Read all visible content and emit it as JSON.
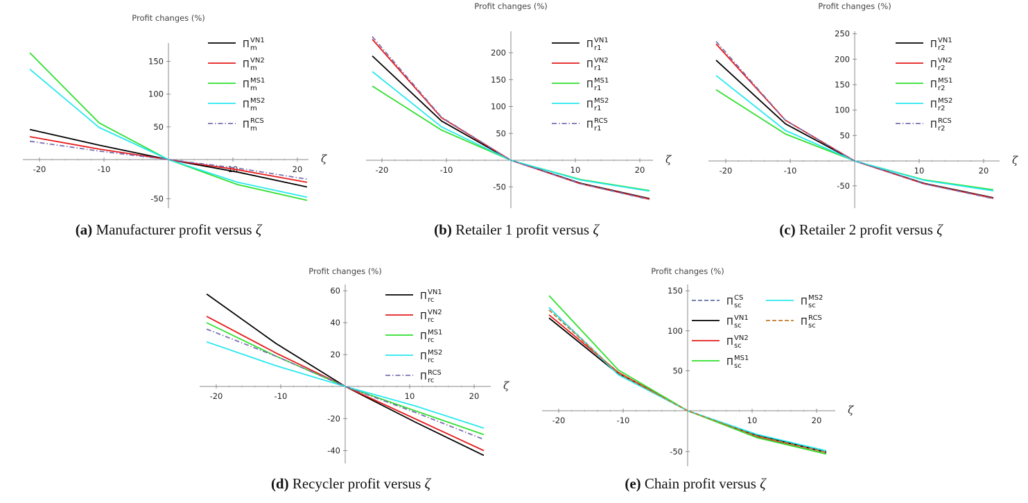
{
  "colors": {
    "VN1": "#000000",
    "VN2": "#e61a1a",
    "MS1": "#2ee02e",
    "MS2": "#27e8ef",
    "RCS": "#7a6fb0",
    "CS": "#5b6f9c",
    "RCS_chain": "#c07a2a"
  },
  "chart_data": [
    {
      "type": "line",
      "panel": "a",
      "caption_letter": "(a)",
      "caption_text": "Manufacturer profit versus ",
      "caption_symbol": "ζ",
      "ylabel": "Profit changes (%)",
      "xlabel": "ζ",
      "xlim": [
        -21.5,
        21.5
      ],
      "ylim": [
        -62,
        178
      ],
      "xticks": [
        -20,
        -10,
        10,
        20
      ],
      "yticks": [
        -50,
        50,
        100,
        150
      ],
      "x": [
        -21.5,
        -10.75,
        0,
        10.75,
        21.5
      ],
      "legend_position": "top-right",
      "series": [
        {
          "name": "VN1",
          "base": "Π",
          "sub": "m",
          "sup": "VN1",
          "color_key": "VN1",
          "dash": "solid",
          "values": [
            46,
            22,
            0,
            -16,
            -35
          ]
        },
        {
          "name": "VN2",
          "base": "Π",
          "sub": "m",
          "sup": "VN2",
          "color_key": "VN2",
          "dash": "solid",
          "values": [
            35,
            16,
            0,
            -13,
            -29
          ]
        },
        {
          "name": "MS1",
          "base": "Π",
          "sub": "m",
          "sup": "MS1",
          "color_key": "MS1",
          "dash": "solid",
          "values": [
            163,
            56,
            0,
            -32,
            -52
          ]
        },
        {
          "name": "MS2",
          "base": "Π",
          "sub": "m",
          "sup": "MS2",
          "color_key": "MS2",
          "dash": "solid",
          "values": [
            138,
            49,
            0,
            -29,
            -48
          ]
        },
        {
          "name": "RCS",
          "base": "Π",
          "sub": "m",
          "sup": "RCS",
          "color_key": "RCS",
          "dash": "dashdot",
          "values": [
            28,
            13,
            0,
            -11,
            -25
          ]
        }
      ]
    },
    {
      "type": "line",
      "panel": "b",
      "caption_letter": "(b)",
      "caption_text": "Retailer 1 profit versus ",
      "caption_symbol": "ζ",
      "ylabel": "Profit changes (%)",
      "xlabel": "ζ",
      "xlim": [
        -21.5,
        21.5
      ],
      "ylim": [
        -90,
        240
      ],
      "xticks": [
        -20,
        -10,
        10,
        20
      ],
      "yticks": [
        -50,
        50,
        100,
        150,
        200
      ],
      "x": [
        -21.5,
        -10.75,
        0,
        10.75,
        21.5
      ],
      "legend_position": "top-right",
      "series": [
        {
          "name": "VN1",
          "base": "Π",
          "sub": "r1",
          "sup": "VN1",
          "color_key": "VN1",
          "dash": "solid",
          "values": [
            194,
            73,
            0,
            -43,
            -72
          ]
        },
        {
          "name": "VN2",
          "base": "Π",
          "sub": "r1",
          "sup": "VN2",
          "color_key": "VN2",
          "dash": "solid",
          "values": [
            225,
            79,
            0,
            -44,
            -73
          ]
        },
        {
          "name": "MS1",
          "base": "Π",
          "sub": "r1",
          "sup": "MS1",
          "color_key": "MS1",
          "dash": "solid",
          "values": [
            138,
            56,
            0,
            -36,
            -57
          ]
        },
        {
          "name": "MS2",
          "base": "Π",
          "sub": "r1",
          "sup": "MS2",
          "color_key": "MS2",
          "dash": "solid",
          "values": [
            165,
            62,
            0,
            -37,
            -58
          ]
        },
        {
          "name": "RCS",
          "base": "Π",
          "sub": "r1",
          "sup": "RCS",
          "color_key": "RCS",
          "dash": "dashdot",
          "values": [
            230,
            80,
            0,
            -44,
            -74
          ]
        }
      ]
    },
    {
      "type": "line",
      "panel": "c",
      "caption_letter": "(c)",
      "caption_text": "Retailer 2 profit versus ",
      "caption_symbol": "ζ",
      "ylabel": "Profit changes (%)",
      "xlabel": "ζ",
      "xlim": [
        -21.5,
        21.5
      ],
      "ylim": [
        -95,
        255
      ],
      "xticks": [
        -20,
        -10,
        10,
        20
      ],
      "yticks": [
        -50,
        50,
        100,
        150,
        200,
        250
      ],
      "x": [
        -21.5,
        -10.75,
        0,
        10.75,
        21.5
      ],
      "legend_position": "top-right",
      "series": [
        {
          "name": "VN1",
          "base": "Π",
          "sub": "r2",
          "sup": "VN1",
          "color_key": "VN1",
          "dash": "solid",
          "values": [
            198,
            73,
            0,
            -45,
            -74
          ]
        },
        {
          "name": "VN2",
          "base": "Π",
          "sub": "r2",
          "sup": "VN2",
          "color_key": "VN2",
          "dash": "solid",
          "values": [
            230,
            80,
            0,
            -46,
            -75
          ]
        },
        {
          "name": "MS1",
          "base": "Π",
          "sub": "r2",
          "sup": "MS1",
          "color_key": "MS1",
          "dash": "solid",
          "values": [
            140,
            53,
            0,
            -38,
            -58
          ]
        },
        {
          "name": "MS2",
          "base": "Π",
          "sub": "r2",
          "sup": "MS2",
          "color_key": "MS2",
          "dash": "solid",
          "values": [
            168,
            60,
            0,
            -39,
            -60
          ]
        },
        {
          "name": "RCS",
          "base": "Π",
          "sub": "r2",
          "sup": "RCS",
          "color_key": "RCS",
          "dash": "dashdot",
          "values": [
            235,
            80,
            0,
            -46,
            -76
          ]
        }
      ]
    },
    {
      "type": "line",
      "panel": "d",
      "caption_letter": "(d)",
      "caption_text": "Recycler profit versus ",
      "caption_symbol": "ζ",
      "ylabel": "Profit changes (%)",
      "xlabel": "ζ",
      "xlim": [
        -21.5,
        21.5
      ],
      "ylim": [
        -48,
        64
      ],
      "xticks": [
        -20,
        -10,
        10,
        20
      ],
      "yticks": [
        -40,
        -20,
        20,
        40,
        60
      ],
      "x": [
        -21.5,
        -10.75,
        0,
        10.75,
        21.5
      ],
      "legend_position": "top-right",
      "series": [
        {
          "name": "VN1",
          "base": "Π",
          "sub": "rc",
          "sup": "VN1",
          "color_key": "VN1",
          "dash": "solid",
          "values": [
            58,
            27,
            0,
            -22,
            -43
          ]
        },
        {
          "name": "VN2",
          "base": "Π",
          "sub": "rc",
          "sup": "VN2",
          "color_key": "VN2",
          "dash": "solid",
          "values": [
            44,
            21,
            0,
            -20,
            -40
          ]
        },
        {
          "name": "MS1",
          "base": "Π",
          "sub": "rc",
          "sup": "MS1",
          "color_key": "MS1",
          "dash": "solid",
          "values": [
            40,
            19,
            0,
            -15,
            -30
          ]
        },
        {
          "name": "MS2",
          "base": "Π",
          "sub": "rc",
          "sup": "MS2",
          "color_key": "MS2",
          "dash": "solid",
          "values": [
            28,
            13,
            0,
            -12,
            -26
          ]
        },
        {
          "name": "RCS",
          "base": "Π",
          "sub": "rc",
          "sup": "RCS",
          "color_key": "RCS",
          "dash": "dashdot",
          "values": [
            36,
            19,
            0,
            -16,
            -33
          ]
        }
      ]
    },
    {
      "type": "line",
      "panel": "e",
      "caption_letter": "(e)",
      "caption_text": "Chain profit versus ",
      "caption_symbol": "ζ",
      "ylabel": "Profit changes (%)",
      "xlabel": "ζ",
      "xlim": [
        -21.5,
        21.5
      ],
      "ylim": [
        -68,
        158
      ],
      "xticks": [
        -20,
        -10,
        10,
        20
      ],
      "yticks": [
        -50,
        50,
        100,
        150
      ],
      "x": [
        -21.5,
        -10.75,
        0,
        10.75,
        21.5
      ],
      "legend_position": "top-right",
      "series": [
        {
          "name": "CS",
          "base": "Π",
          "sub": "sc",
          "sup": "CS",
          "color_key": "CS",
          "dash": "dashed",
          "values": [
            129,
            46,
            0,
            -30,
            -50
          ]
        },
        {
          "name": "VN1",
          "base": "Π",
          "sub": "sc",
          "sup": "VN1",
          "color_key": "VN1",
          "dash": "solid",
          "values": [
            116,
            46,
            0,
            -30,
            -51
          ]
        },
        {
          "name": "VN2",
          "base": "Π",
          "sub": "sc",
          "sup": "VN2",
          "color_key": "VN2",
          "dash": "solid",
          "values": [
            120,
            48,
            0,
            -32,
            -53
          ]
        },
        {
          "name": "MS1",
          "base": "Π",
          "sub": "sc",
          "sup": "MS1",
          "color_key": "MS1",
          "dash": "solid",
          "values": [
            144,
            51,
            0,
            -33,
            -53
          ]
        },
        {
          "name": "MS2",
          "base": "Π",
          "sub": "sc",
          "sup": "MS2",
          "color_key": "MS2",
          "dash": "solid",
          "values": [
            129,
            45,
            0,
            -29,
            -49
          ]
        },
        {
          "name": "RCS",
          "base": "Π",
          "sub": "sc",
          "sup": "RCS",
          "color_key": "RCS_chain",
          "dash": "dashed",
          "values": [
            126,
            47,
            0,
            -31,
            -51
          ]
        }
      ]
    }
  ]
}
